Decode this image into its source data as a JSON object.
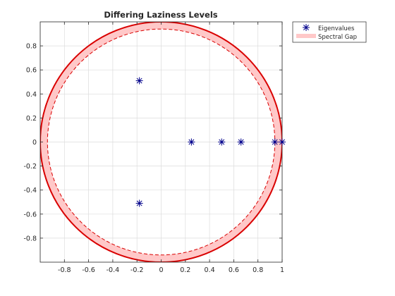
{
  "chart_data": {
    "type": "scatter",
    "title": "Differing Laziness Levels",
    "xlabel": "",
    "ylabel": "",
    "xlim": [
      -1,
      1
    ],
    "ylim": [
      -1,
      1
    ],
    "x_ticks": [
      -0.8,
      -0.6,
      -0.4,
      -0.2,
      0,
      0.2,
      0.4,
      0.6,
      0.8,
      1
    ],
    "x_tick_labels": [
      "-0.8",
      "-0.6",
      "-0.4",
      "-0.2",
      "0",
      "0.2",
      "0.4",
      "0.6",
      "0.8",
      "1"
    ],
    "y_ticks": [
      -0.8,
      -0.6,
      -0.4,
      -0.2,
      0,
      0.2,
      0.4,
      0.6,
      0.8
    ],
    "y_tick_labels": [
      "-0.8",
      "-0.6",
      "-0.4",
      "-0.2",
      "0",
      "0.2",
      "0.4",
      "0.6",
      "0.8"
    ],
    "grid": true,
    "legend_position": "outside top-right",
    "series": [
      {
        "name": "Eigenvalues",
        "marker": "asterisk",
        "color": "#00008b",
        "points": [
          {
            "x": -0.18,
            "y": 0.51
          },
          {
            "x": -0.18,
            "y": -0.51
          },
          {
            "x": 0.25,
            "y": 0
          },
          {
            "x": 0.5,
            "y": 0
          },
          {
            "x": 0.66,
            "y": 0
          },
          {
            "x": 0.94,
            "y": 0
          },
          {
            "x": 1.0,
            "y": 0
          }
        ]
      },
      {
        "name": "Spectral Gap",
        "type": "annulus",
        "outer_radius": 1.0,
        "inner_radius": 0.94,
        "fill_color": "#ffc8c8",
        "edge_color": "#d90000"
      }
    ]
  }
}
